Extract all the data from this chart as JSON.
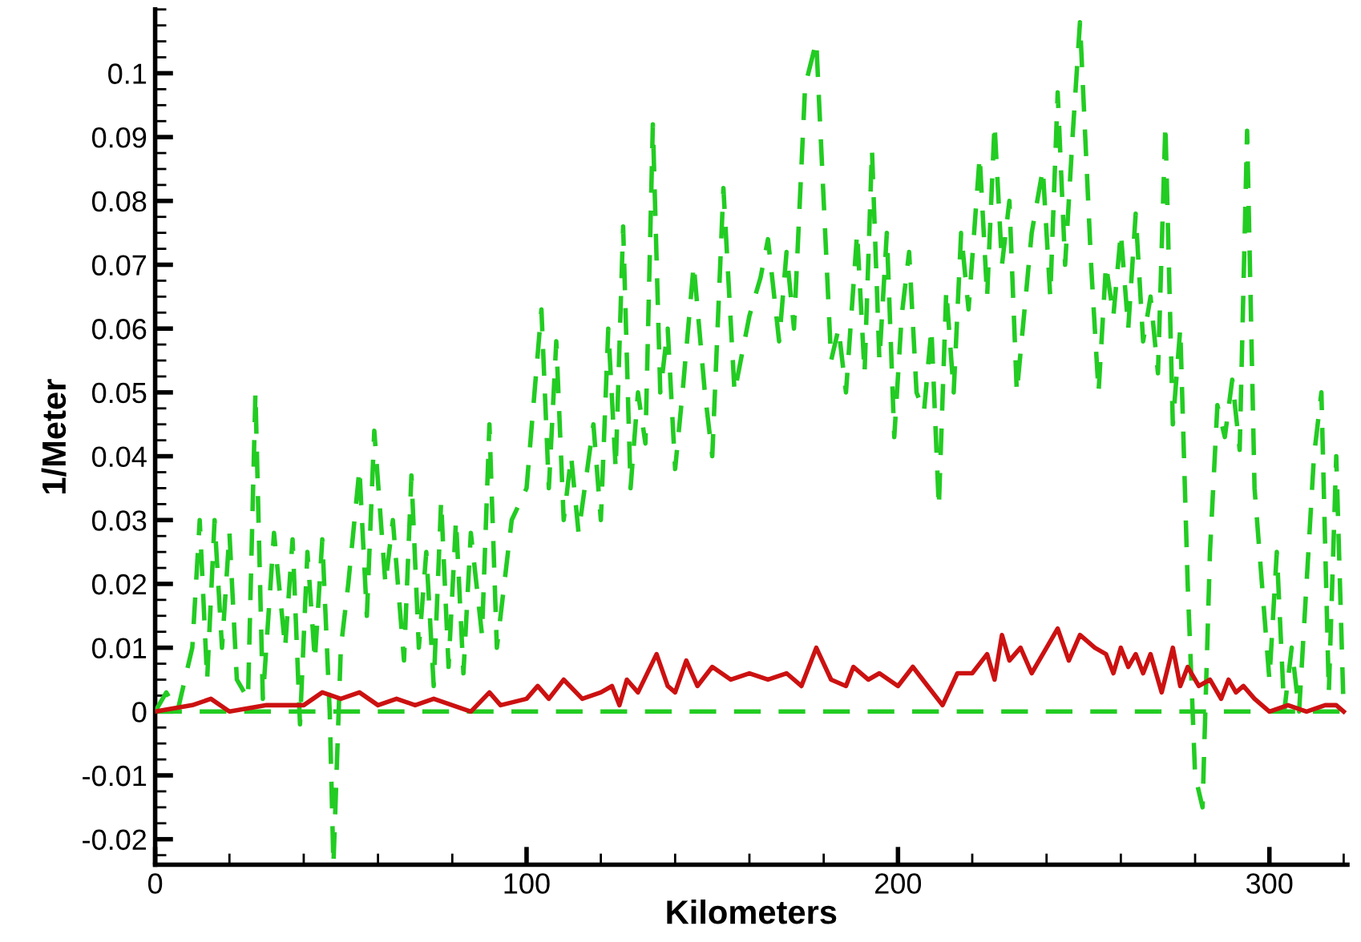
{
  "chart_data": {
    "type": "line",
    "xlabel": "Kilometers",
    "ylabel": "1/Meter",
    "xlim": [
      0,
      321
    ],
    "xticks": [
      0,
      100,
      200,
      300
    ],
    "ylim": [
      -0.024,
      0.11
    ],
    "yticks": [
      -0.02,
      -0.01,
      0,
      0.01,
      0.02,
      0.03,
      0.04,
      0.05,
      0.06,
      0.07,
      0.08,
      0.09,
      0.1
    ],
    "grid": false,
    "legend": false,
    "marker": "none",
    "ref_lines": [
      {
        "axis": "y",
        "value": 0,
        "color": "#22cc22",
        "line_style": "dashed"
      }
    ],
    "series": [
      {
        "color": "#22cc22",
        "line_style": "dashed",
        "x": [
          0,
          3,
          6,
          10,
          12,
          14,
          16,
          18,
          20,
          22,
          25,
          27,
          29,
          32,
          35,
          37,
          39,
          41,
          43,
          45,
          47,
          48,
          50,
          52,
          55,
          57,
          59,
          62,
          64,
          67,
          69,
          71,
          73,
          75,
          77,
          79,
          81,
          83,
          85,
          88,
          90,
          92,
          94,
          96,
          100,
          104,
          106,
          108,
          110,
          112,
          114,
          118,
          120,
          122,
          124,
          126,
          128,
          130,
          132,
          134,
          136,
          138,
          140,
          142,
          145,
          148,
          150,
          153,
          156,
          160,
          163,
          165,
          168,
          170,
          172,
          175,
          178,
          180,
          182,
          184,
          186,
          189,
          191,
          193,
          195,
          197,
          199,
          201,
          203,
          205,
          207,
          209,
          211,
          213,
          215,
          217,
          219,
          222,
          224,
          226,
          228,
          230,
          232,
          236,
          239,
          241,
          243,
          245,
          247,
          249,
          252,
          254,
          256,
          258,
          260,
          262,
          264,
          266,
          268,
          270,
          272,
          274,
          276,
          278,
          280,
          282,
          284,
          286,
          288,
          290,
          292,
          294,
          296,
          298,
          300,
          302,
          304,
          306,
          308,
          310,
          312,
          314,
          316,
          318,
          320
        ],
        "values": [
          0,
          0.003,
          0,
          0.01,
          0.03,
          0.005,
          0.03,
          0.01,
          0.028,
          0.005,
          0.002,
          0.05,
          0.002,
          0.028,
          0.01,
          0.027,
          -0.002,
          0.025,
          0.008,
          0.027,
          0,
          -0.024,
          0.01,
          0.02,
          0.038,
          0.015,
          0.044,
          0.02,
          0.03,
          0.008,
          0.037,
          0.01,
          0.025,
          0.004,
          0.033,
          0.007,
          0.03,
          0.006,
          0.028,
          0.012,
          0.045,
          0.01,
          0.02,
          0.03,
          0.035,
          0.063,
          0.035,
          0.058,
          0.03,
          0.04,
          0.028,
          0.045,
          0.03,
          0.06,
          0.038,
          0.076,
          0.035,
          0.05,
          0.042,
          0.092,
          0.05,
          0.06,
          0.038,
          0.05,
          0.07,
          0.05,
          0.04,
          0.082,
          0.05,
          0.062,
          0.068,
          0.074,
          0.058,
          0.072,
          0.06,
          0.098,
          0.105,
          0.08,
          0.055,
          0.06,
          0.05,
          0.075,
          0.053,
          0.088,
          0.055,
          0.075,
          0.043,
          0.062,
          0.072,
          0.05,
          0.047,
          0.06,
          0.032,
          0.066,
          0.05,
          0.075,
          0.063,
          0.087,
          0.065,
          0.092,
          0.07,
          0.08,
          0.05,
          0.075,
          0.085,
          0.065,
          0.097,
          0.07,
          0.09,
          0.108,
          0.07,
          0.05,
          0.07,
          0.062,
          0.075,
          0.06,
          0.078,
          0.058,
          0.065,
          0.053,
          0.092,
          0.045,
          0.06,
          0.02,
          -0.01,
          -0.015,
          0.025,
          0.048,
          0.043,
          0.052,
          0.041,
          0.091,
          0.035,
          0.02,
          0.005,
          0.025,
          0,
          0.01,
          0,
          0.02,
          0.04,
          0.05,
          0.003,
          0.04,
          0
        ]
      },
      {
        "color": "#cc1111",
        "line_style": "solid",
        "x": [
          0,
          10,
          15,
          20,
          30,
          40,
          45,
          50,
          55,
          60,
          65,
          70,
          75,
          80,
          85,
          90,
          93,
          100,
          103,
          106,
          110,
          115,
          120,
          123,
          125,
          127,
          130,
          135,
          138,
          140,
          143,
          146,
          150,
          155,
          160,
          165,
          170,
          174,
          178,
          182,
          186,
          188,
          192,
          195,
          200,
          204,
          208,
          212,
          216,
          220,
          224,
          226,
          228,
          230,
          233,
          236,
          240,
          243,
          246,
          249,
          253,
          256,
          258,
          260,
          262,
          264,
          266,
          268,
          271,
          274,
          276,
          278,
          281,
          284,
          287,
          289,
          291,
          293,
          296,
          300,
          305,
          310,
          315,
          318,
          320
        ],
        "values": [
          0,
          0.001,
          0.002,
          0,
          0.001,
          0.001,
          0.003,
          0.002,
          0.003,
          0.001,
          0.002,
          0.001,
          0.002,
          0.001,
          0,
          0.003,
          0.001,
          0.002,
          0.004,
          0.002,
          0.005,
          0.002,
          0.003,
          0.004,
          0.001,
          0.005,
          0.003,
          0.009,
          0.004,
          0.003,
          0.008,
          0.004,
          0.007,
          0.005,
          0.006,
          0.005,
          0.006,
          0.004,
          0.01,
          0.005,
          0.004,
          0.007,
          0.005,
          0.006,
          0.004,
          0.007,
          0.004,
          0.001,
          0.006,
          0.006,
          0.009,
          0.005,
          0.012,
          0.008,
          0.01,
          0.006,
          0.01,
          0.013,
          0.008,
          0.012,
          0.01,
          0.009,
          0.006,
          0.01,
          0.007,
          0.009,
          0.006,
          0.009,
          0.003,
          0.01,
          0.004,
          0.007,
          0.004,
          0.005,
          0.002,
          0.005,
          0.003,
          0.004,
          0.002,
          0,
          0.001,
          0,
          0.001,
          0.001,
          0
        ]
      }
    ]
  }
}
